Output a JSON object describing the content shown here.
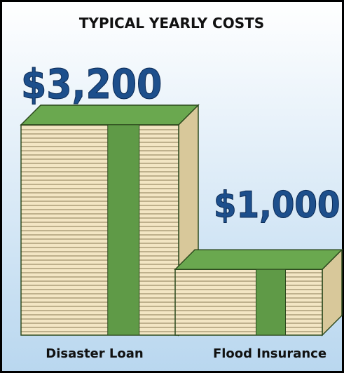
{
  "chart_data": {
    "type": "pictograph",
    "title": "TYPICAL YEARLY COSTS",
    "categories": [
      "Disaster Loan",
      "Flood Insurance"
    ],
    "values": [
      3200,
      1000
    ],
    "value_labels": [
      "$3,200",
      "$1,000"
    ],
    "color": "#6aa84f"
  }
}
